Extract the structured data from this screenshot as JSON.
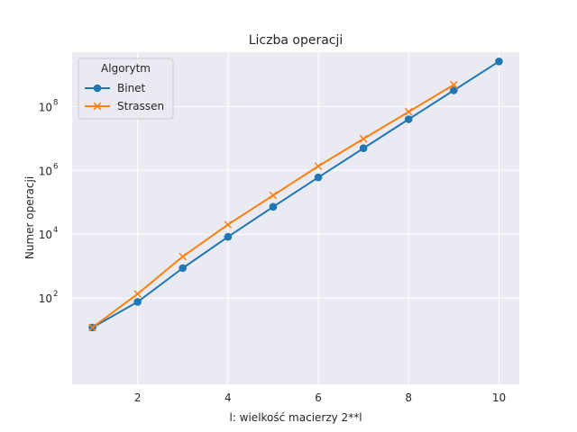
{
  "chart_data": {
    "type": "line",
    "title": "Liczba operacji",
    "xlabel": "l: wielkość macierzy 2**l",
    "ylabel": "Numer operacji",
    "yscale": "log",
    "xlim": [
      0.55,
      10.45
    ],
    "ylim_log10": [
      -0.7,
      9.7
    ],
    "x_ticks": [
      2,
      4,
      6,
      8,
      10
    ],
    "y_ticks": [
      {
        "value": 100,
        "base": "10",
        "exp": "2"
      },
      {
        "value": 10000,
        "base": "10",
        "exp": "4"
      },
      {
        "value": 1000000,
        "base": "10",
        "exp": "6"
      },
      {
        "value": 100000000,
        "base": "10",
        "exp": "8"
      }
    ],
    "grid": true,
    "legend": {
      "title": "Algorytm",
      "placement": "top-left"
    },
    "series": [
      {
        "name": "Binet",
        "color": "#1f77b4",
        "marker": "circle",
        "x": [
          1,
          2,
          3,
          4,
          5,
          6,
          7,
          8,
          9,
          10
        ],
        "y": [
          12,
          76,
          870,
          8260,
          72000,
          602000,
          4920000,
          39800000,
          320000000,
          2570000000
        ]
      },
      {
        "name": "Strassen",
        "color": "#ff7f0e",
        "marker": "x",
        "x": [
          1,
          2,
          3,
          4,
          5,
          6,
          7,
          8,
          9
        ],
        "y": [
          12,
          135,
          2000,
          20000,
          165000,
          1350000,
          9700000,
          68000000,
          477000000
        ]
      }
    ]
  }
}
